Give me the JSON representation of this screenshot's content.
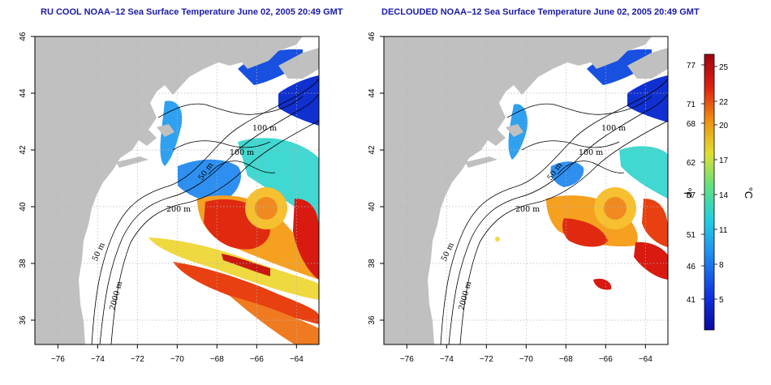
{
  "maps": [
    {
      "title": "RU COOL NOAA–12 Sea Surface Temperature June 02, 2005 20:49 GMT",
      "contours": [
        "100 m",
        "100 m",
        "50 m",
        "200 m",
        "50 m",
        "2000 m"
      ]
    },
    {
      "title": "DECLOUDED NOAA–12 Sea Surface Temperature June 02, 2005 20:49 GMT",
      "contours": [
        "100 m",
        "100 m",
        "50 m",
        "200 m",
        "50 m",
        "2000 m"
      ]
    }
  ],
  "axes": {
    "lon_ticks": [
      "−76",
      "−74",
      "−72",
      "−70",
      "−68",
      "−66",
      "−64"
    ],
    "lat_ticks": [
      "46",
      "44",
      "42",
      "40",
      "38",
      "36"
    ]
  },
  "colorbar": {
    "fahrenheit_label": "°F",
    "celsius_label": "°C",
    "fahrenheit_ticks": [
      "77",
      "71",
      "68",
      "62",
      "57",
      "51",
      "46",
      "41"
    ],
    "celsius_ticks": [
      "25",
      "22",
      "20",
      "17",
      "14",
      "11",
      "8",
      "5"
    ]
  },
  "colors": {
    "land": "#c0c0c0",
    "cold": "#1030d0",
    "cool": "#30a0f0",
    "mild": "#40e0c0",
    "warm": "#f0e040",
    "hot": "#e02010",
    "title": "#1a1aa6"
  }
}
